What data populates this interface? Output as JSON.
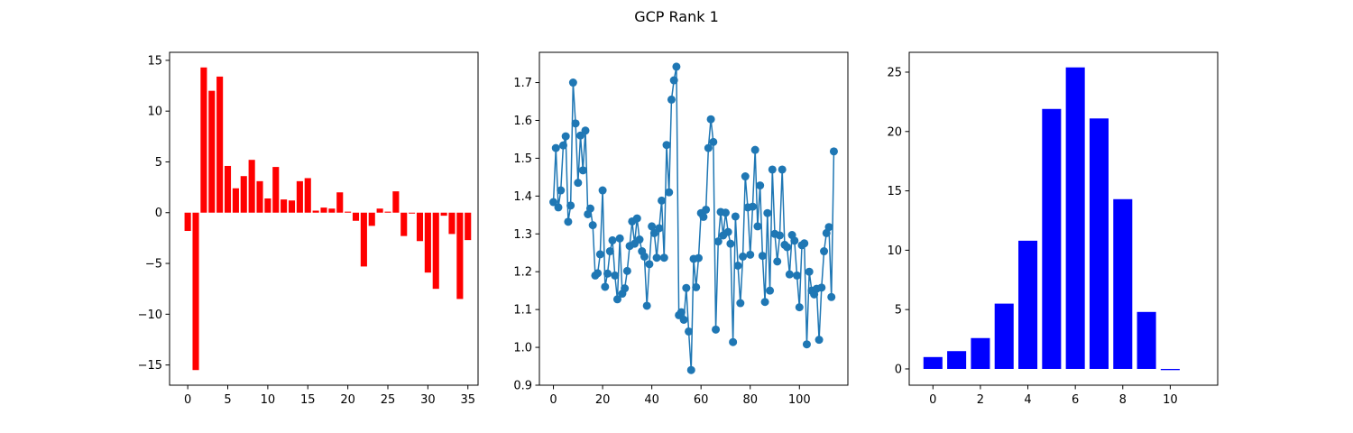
{
  "figure": {
    "title": "GCP Rank 1"
  },
  "chart_data": [
    {
      "type": "bar",
      "color": "#ff0000",
      "x": [
        0,
        1,
        2,
        3,
        4,
        5,
        6,
        7,
        8,
        9,
        10,
        11,
        12,
        13,
        14,
        15,
        16,
        17,
        18,
        19,
        20,
        21,
        22,
        23,
        24,
        25,
        26,
        27,
        28,
        29,
        30,
        31,
        32,
        33,
        34,
        35
      ],
      "values": [
        -1.8,
        -15.5,
        14.3,
        12.0,
        13.4,
        4.6,
        2.4,
        3.6,
        5.2,
        3.1,
        1.4,
        4.5,
        1.3,
        1.2,
        3.1,
        3.4,
        0.2,
        0.5,
        0.4,
        2.0,
        0.1,
        -0.8,
        -5.3,
        -1.3,
        0.4,
        0.1,
        2.1,
        -2.3,
        0.0,
        -2.8,
        -5.9,
        -7.5,
        -0.3,
        -2.1,
        -8.5,
        -2.7
      ],
      "xlim": [
        -2.27,
        36.27
      ],
      "ylim": [
        -16.99,
        15.79
      ],
      "xticks": [
        0,
        5,
        10,
        15,
        20,
        25,
        30,
        35
      ],
      "yticks": [
        -15,
        -10,
        -5,
        0,
        5,
        10,
        15
      ],
      "xtick_labels": [
        "0",
        "5",
        "10",
        "15",
        "20",
        "25",
        "30",
        "35"
      ],
      "ytick_labels": [
        "−15",
        "−10",
        "−5",
        "0",
        "5",
        "10",
        "15"
      ]
    },
    {
      "type": "line",
      "color": "#1f77b4",
      "marker": "circle",
      "x": [
        0,
        1,
        2,
        3,
        4,
        5,
        6,
        7,
        8,
        9,
        10,
        11,
        12,
        13,
        14,
        15,
        16,
        17,
        18,
        19,
        20,
        21,
        22,
        23,
        24,
        25,
        26,
        27,
        28,
        29,
        30,
        31,
        32,
        33,
        34,
        35,
        36,
        37,
        38,
        39,
        40,
        41,
        42,
        43,
        44,
        45,
        46,
        47,
        48,
        49,
        50,
        51,
        52,
        53,
        54,
        55,
        56,
        57,
        58,
        59,
        60,
        61,
        62,
        63,
        64,
        65,
        66,
        67,
        68,
        69,
        70,
        71,
        72,
        73,
        74,
        75,
        76,
        77,
        78,
        79,
        80,
        81,
        82,
        83,
        84,
        85,
        86,
        87,
        88,
        89,
        90,
        91,
        92,
        93,
        94,
        95,
        96,
        97,
        98,
        99,
        100,
        101,
        102,
        103,
        104,
        105,
        106,
        107,
        108,
        109,
        110,
        111,
        112,
        113,
        114
      ],
      "values": [
        1.384,
        1.527,
        1.37,
        1.415,
        1.534,
        1.558,
        1.332,
        1.375,
        1.7,
        1.592,
        1.435,
        1.56,
        1.468,
        1.573,
        1.352,
        1.367,
        1.323,
        1.19,
        1.196,
        1.246,
        1.415,
        1.16,
        1.195,
        1.254,
        1.283,
        1.19,
        1.127,
        1.288,
        1.142,
        1.156,
        1.202,
        1.268,
        1.333,
        1.274,
        1.341,
        1.285,
        1.254,
        1.24,
        1.11,
        1.22,
        1.32,
        1.302,
        1.237,
        1.315,
        1.388,
        1.237,
        1.535,
        1.41,
        1.655,
        1.706,
        1.742,
        1.085,
        1.093,
        1.073,
        1.157,
        1.042,
        0.94,
        1.234,
        1.159,
        1.236,
        1.355,
        1.345,
        1.364,
        1.527,
        1.603,
        1.543,
        1.047,
        1.28,
        1.358,
        1.296,
        1.356,
        1.305,
        1.274,
        1.014,
        1.346,
        1.216,
        1.117,
        1.24,
        1.452,
        1.37,
        1.245,
        1.372,
        1.522,
        1.32,
        1.428,
        1.242,
        1.12,
        1.355,
        1.15,
        1.47,
        1.3,
        1.227,
        1.296,
        1.47,
        1.271,
        1.265,
        1.193,
        1.297,
        1.282,
        1.19,
        1.106,
        1.27,
        1.275,
        1.008,
        1.2,
        1.15,
        1.14,
        1.155,
        1.02,
        1.158,
        1.254,
        1.302,
        1.318,
        1.133,
        1.518
      ],
      "xlim": [
        -5.7,
        119.7
      ],
      "ylim": [
        0.9,
        1.78
      ],
      "xticks": [
        0,
        20,
        40,
        60,
        80,
        100
      ],
      "yticks": [
        0.9,
        1.0,
        1.1,
        1.2,
        1.3,
        1.4,
        1.5,
        1.6,
        1.7
      ],
      "xtick_labels": [
        "0",
        "20",
        "40",
        "60",
        "80",
        "100"
      ],
      "ytick_labels": [
        "0.9",
        "1.0",
        "1.1",
        "1.2",
        "1.3",
        "1.4",
        "1.5",
        "1.6",
        "1.7"
      ]
    },
    {
      "type": "bar",
      "color": "#0000ff",
      "x": [
        0,
        1,
        2,
        3,
        4,
        5,
        6,
        7,
        8,
        9,
        10
      ],
      "values": [
        1.0,
        1.5,
        2.6,
        5.5,
        10.8,
        21.9,
        25.4,
        21.1,
        14.3,
        4.8,
        -0.1
      ],
      "xlim": [
        -1.0,
        12.0
      ],
      "ylim": [
        -1.37,
        26.67
      ],
      "xticks": [
        0,
        2,
        4,
        6,
        8,
        10
      ],
      "yticks": [
        0,
        5,
        10,
        15,
        20,
        25
      ],
      "xtick_labels": [
        "0",
        "2",
        "4",
        "6",
        "8",
        "10"
      ],
      "ytick_labels": [
        "0",
        "5",
        "10",
        "15",
        "20",
        "25"
      ]
    }
  ]
}
